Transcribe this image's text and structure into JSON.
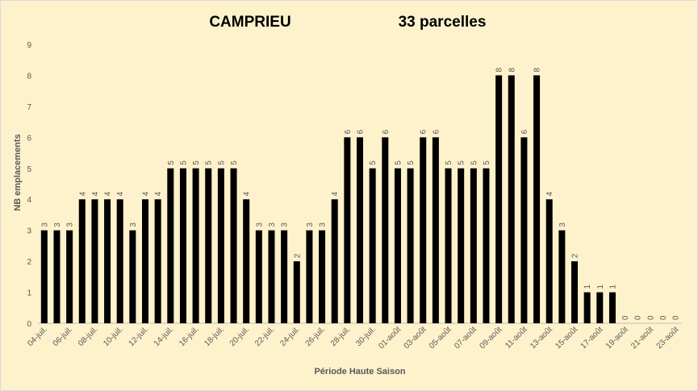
{
  "chart_data": {
    "type": "bar",
    "title": "CAMPRIEU",
    "subtitle": "33 parcelles",
    "x_label": "Période Haute Saison",
    "y_label": "NB emplacements",
    "categories": [
      "04-juil.",
      null,
      "06-juil.",
      null,
      "08-juil.",
      null,
      "10-juil.",
      null,
      "12-juil.",
      null,
      "14-juil.",
      null,
      "16-juil.",
      null,
      "18-juil.",
      null,
      "20-juil.",
      null,
      "22-juil.",
      null,
      "24-juil.",
      null,
      "26-juil.",
      null,
      "28-juil.",
      null,
      "30-juil.",
      null,
      "01-août",
      null,
      "03-août",
      null,
      "05-août",
      null,
      "07-août",
      null,
      "09-août",
      null,
      "11-août",
      null,
      "13-août",
      null,
      "15-août",
      null,
      "17-août",
      null,
      "19-août",
      null,
      "21-août",
      null,
      "23-août"
    ],
    "values": [
      3,
      3,
      3,
      4,
      4,
      4,
      4,
      3,
      4,
      4,
      5,
      5,
      5,
      5,
      5,
      5,
      4,
      3,
      3,
      3,
      2,
      3,
      3,
      4,
      6,
      6,
      5,
      6,
      5,
      5,
      6,
      6,
      5,
      5,
      5,
      5,
      8,
      8,
      6,
      8,
      4,
      3,
      2,
      1,
      1,
      1,
      0,
      0,
      0,
      0,
      0
    ],
    "color": "#000000",
    "ylim": [
      0,
      9
    ],
    "yticks": [
      0,
      1,
      2,
      3,
      4,
      5,
      6,
      7,
      8,
      9
    ],
    "grid": false
  }
}
